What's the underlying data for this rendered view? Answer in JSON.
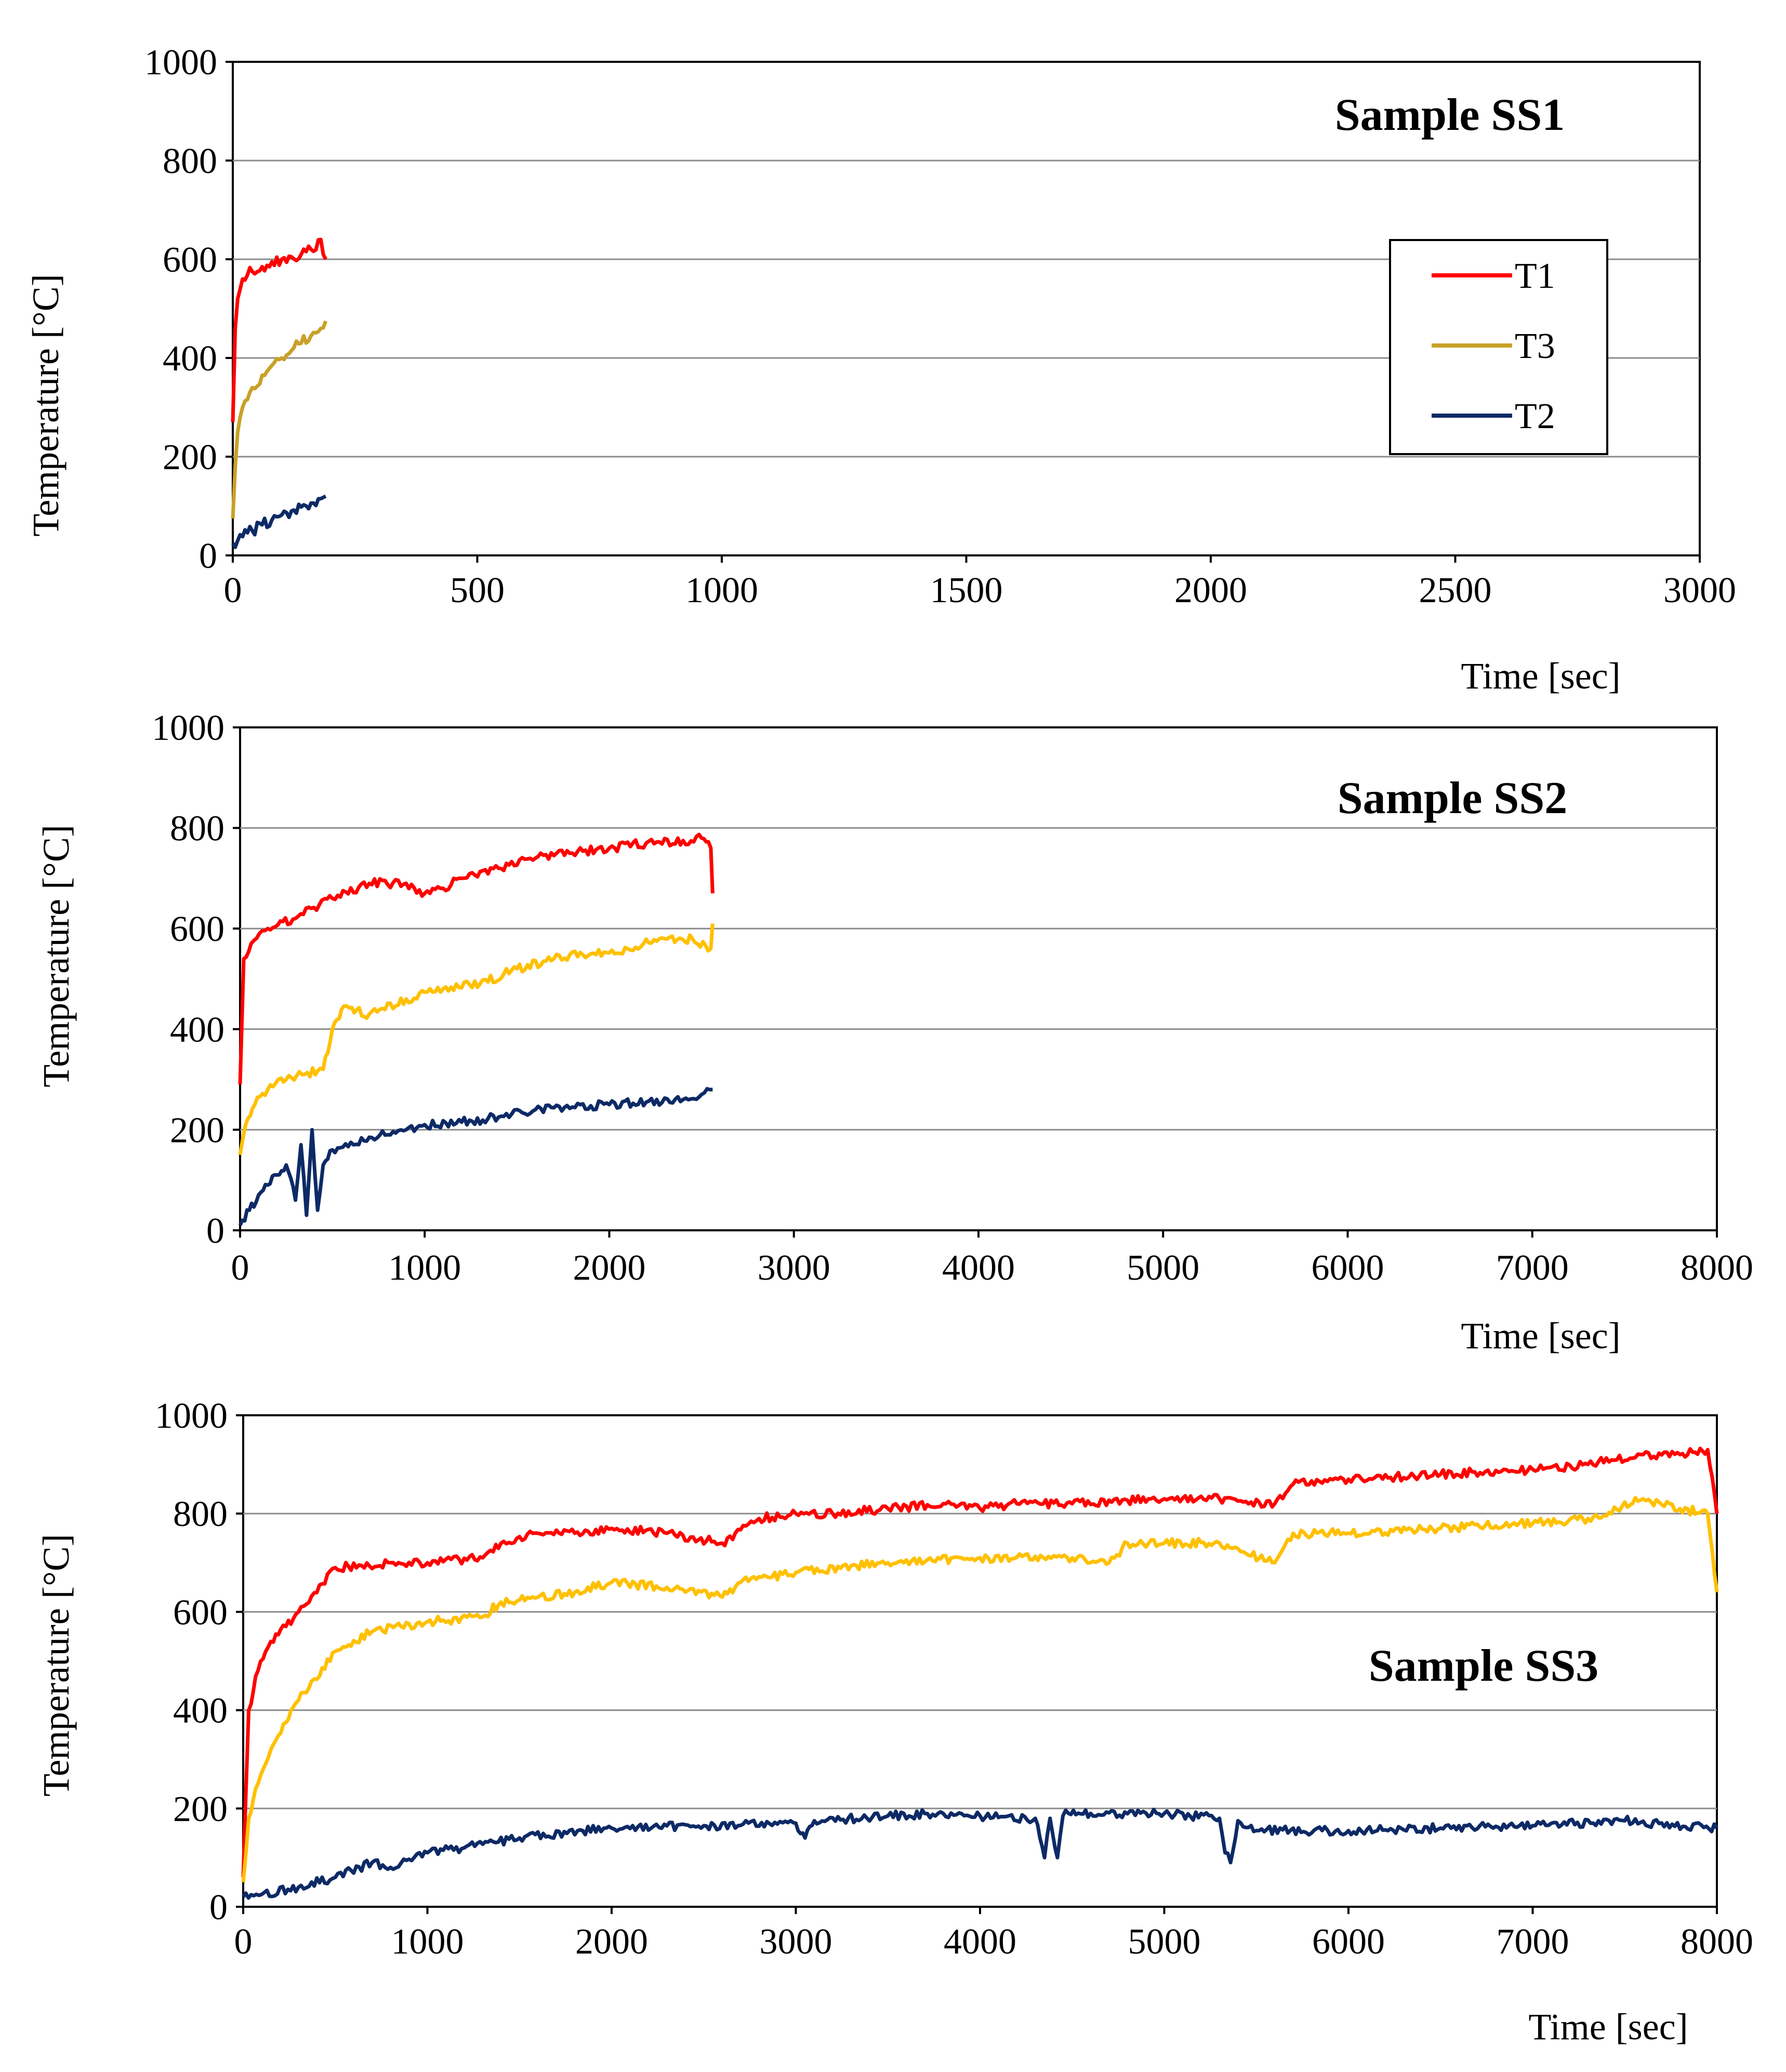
{
  "colors": {
    "T1": "#ff0000",
    "T3_panel1": "#c9a128",
    "T3": "#ffc000",
    "T2": "#0d2a66"
  },
  "legend": [
    "T1",
    "T3",
    "T2"
  ],
  "chart_data": [
    {
      "type": "line",
      "title": "Sample SS1",
      "xlabel": "Time  [sec]",
      "ylabel": "Temperature  [°C]",
      "xlim": [
        0,
        3000
      ],
      "ylim": [
        0,
        1000
      ],
      "xticks": [
        0,
        500,
        1000,
        1500,
        2000,
        2500,
        3000
      ],
      "yticks": [
        0,
        200,
        400,
        600,
        800,
        1000
      ],
      "legend_position": "right",
      "series": [
        {
          "name": "T1",
          "color_key": "T1",
          "x": [
            0,
            5,
            10,
            20,
            40,
            60,
            80,
            100,
            120,
            140,
            160,
            180,
            190
          ],
          "y": [
            270,
            460,
            520,
            560,
            575,
            585,
            595,
            600,
            605,
            610,
            620,
            640,
            600
          ]
        },
        {
          "name": "T3",
          "color_key": "T3_panel1",
          "x": [
            0,
            5,
            10,
            20,
            40,
            60,
            80,
            100,
            120,
            140,
            160,
            180,
            190
          ],
          "y": [
            75,
            180,
            250,
            300,
            340,
            365,
            385,
            400,
            415,
            430,
            445,
            460,
            475
          ]
        },
        {
          "name": "T2",
          "color_key": "T2",
          "x": [
            0,
            10,
            20,
            40,
            60,
            80,
            100,
            120,
            140,
            160,
            180,
            190
          ],
          "y": [
            25,
            30,
            38,
            50,
            62,
            72,
            82,
            90,
            98,
            106,
            115,
            120
          ]
        }
      ]
    },
    {
      "type": "line",
      "title": "Sample SS2",
      "xlabel": "Time  [sec]",
      "ylabel": "Temperature  [°C]",
      "xlim": [
        0,
        8000
      ],
      "ylim": [
        0,
        1000
      ],
      "xticks": [
        0,
        1000,
        2000,
        3000,
        4000,
        5000,
        6000,
        7000,
        8000
      ],
      "yticks": [
        0,
        200,
        400,
        600,
        800,
        1000
      ],
      "series": [
        {
          "name": "T1",
          "color_key": "T1",
          "x": [
            0,
            20,
            60,
            150,
            300,
            500,
            700,
            900,
            1000,
            1100,
            1200,
            1400,
            1600,
            1800,
            2000,
            2200,
            2400,
            2500,
            2550,
            2560
          ],
          "y": [
            290,
            540,
            570,
            600,
            620,
            660,
            690,
            690,
            670,
            680,
            700,
            720,
            740,
            750,
            760,
            770,
            775,
            780,
            760,
            670
          ]
        },
        {
          "name": "T3",
          "color_key": "T3",
          "x": [
            0,
            30,
            80,
            150,
            250,
            350,
            450,
            500,
            550,
            700,
            900,
            1100,
            1300,
            1500,
            1700,
            1900,
            2100,
            2300,
            2450,
            2550,
            2560
          ],
          "y": [
            150,
            210,
            250,
            280,
            300,
            310,
            320,
            400,
            440,
            430,
            460,
            480,
            490,
            520,
            540,
            550,
            560,
            580,
            580,
            560,
            610
          ]
        },
        {
          "name": "T2",
          "color_key": "T2",
          "x": [
            0,
            50,
            100,
            150,
            200,
            250,
            300,
            330,
            360,
            390,
            420,
            450,
            500,
            600,
            700,
            800,
            900,
            1000,
            1200,
            1400,
            1600,
            1800,
            2000,
            2200,
            2400,
            2500,
            2560
          ],
          "y": [
            10,
            40,
            70,
            90,
            110,
            130,
            60,
            170,
            30,
            200,
            40,
            130,
            160,
            175,
            185,
            190,
            200,
            210,
            215,
            225,
            240,
            245,
            250,
            255,
            260,
            270,
            280
          ]
        }
      ]
    },
    {
      "type": "line",
      "title": "Sample SS3",
      "xlabel": "Time  [sec]",
      "ylabel": "Temperature  [°C]",
      "xlim": [
        0,
        8000
      ],
      "ylim": [
        0,
        1000
      ],
      "xticks": [
        0,
        1000,
        2000,
        3000,
        4000,
        5000,
        6000,
        7000,
        8000
      ],
      "yticks": [
        0,
        200,
        400,
        600,
        800,
        1000
      ],
      "series": [
        {
          "name": "T1",
          "color_key": "T1",
          "x": [
            0,
            30,
            80,
            150,
            300,
            500,
            800,
            1000,
            1300,
            1400,
            1600,
            1800,
            2000,
            2300,
            2600,
            2800,
            3000,
            3200,
            3500,
            3800,
            4000,
            4200,
            4500,
            5000,
            5300,
            5600,
            5700,
            6000,
            6500,
            7000,
            7300,
            7600,
            7800,
            7950,
            8000
          ],
          "y": [
            60,
            400,
            480,
            540,
            600,
            690,
            700,
            700,
            710,
            740,
            760,
            760,
            770,
            760,
            740,
            790,
            800,
            800,
            810,
            820,
            810,
            820,
            820,
            830,
            830,
            820,
            860,
            870,
            880,
            890,
            900,
            920,
            920,
            930,
            800
          ]
        },
        {
          "name": "T3",
          "color_key": "T3",
          "x": [
            0,
            30,
            80,
            150,
            300,
            500,
            700,
            1000,
            1300,
            1400,
            1600,
            1800,
            2000,
            2300,
            2600,
            2700,
            3000,
            3500,
            4000,
            4500,
            4700,
            4800,
            5000,
            5300,
            5600,
            5700,
            6000,
            6500,
            7000,
            7300,
            7600,
            7800,
            7950,
            8000
          ],
          "y": [
            50,
            180,
            250,
            320,
            420,
            520,
            560,
            580,
            590,
            620,
            630,
            640,
            660,
            650,
            630,
            660,
            680,
            700,
            710,
            710,
            700,
            740,
            740,
            740,
            700,
            760,
            760,
            770,
            780,
            790,
            830,
            810,
            800,
            640
          ]
        },
        {
          "name": "T2",
          "color_key": "T2",
          "x": [
            0,
            100,
            300,
            500,
            700,
            800,
            1000,
            1200,
            1500,
            2000,
            2500,
            3000,
            3050,
            3100,
            3500,
            3800,
            4000,
            4300,
            4350,
            4380,
            4420,
            4450,
            4480,
            4600,
            5000,
            5300,
            5330,
            5360,
            5400,
            5500,
            6000,
            6500,
            7000,
            7500,
            8000
          ],
          "y": [
            20,
            25,
            40,
            60,
            90,
            80,
            110,
            120,
            140,
            160,
            165,
            170,
            140,
            175,
            185,
            190,
            185,
            180,
            100,
            180,
            100,
            185,
            190,
            190,
            190,
            180,
            110,
            90,
            175,
            155,
            155,
            160,
            165,
            175,
            160
          ]
        }
      ]
    }
  ]
}
